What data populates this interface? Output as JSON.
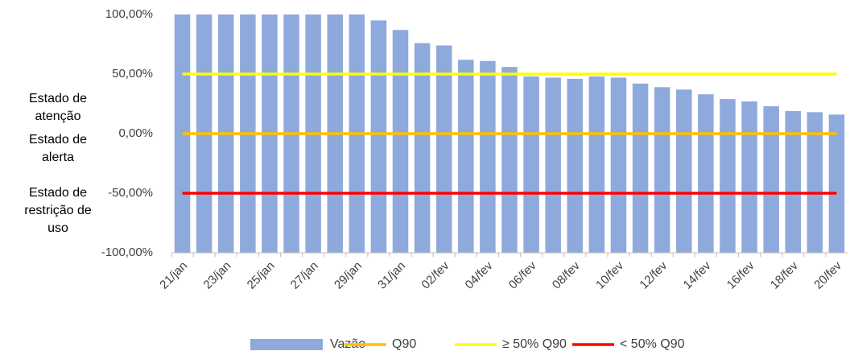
{
  "chart_data": {
    "type": "bar",
    "categories": [
      "21/jan",
      null,
      "23/jan",
      null,
      "25/jan",
      null,
      "27/jan",
      null,
      "29/jan",
      null,
      "31/jan",
      null,
      "02/fev",
      null,
      "04/fev",
      null,
      "06/fev",
      null,
      "08/fev",
      null,
      "10/fev",
      null,
      "12/fev",
      null,
      "14/fev",
      null,
      "16/fev",
      null,
      "18/fev",
      null,
      "20/fev"
    ],
    "series": [
      {
        "name": "Vazão",
        "type": "bar",
        "color": "#8eaadc",
        "values": [
          100,
          100,
          100,
          100,
          100,
          100,
          100,
          100,
          100,
          95,
          87,
          76,
          74,
          62,
          61,
          56,
          48,
          47,
          46,
          48,
          47,
          42,
          39,
          37,
          33,
          29,
          27,
          23,
          19,
          18,
          16
        ]
      },
      {
        "name": "Q90",
        "type": "line",
        "color": "#ffc000",
        "values": [
          0,
          0,
          0,
          0,
          0,
          0,
          0,
          0,
          0,
          0,
          0,
          0,
          0,
          0,
          0,
          0,
          0,
          0,
          0,
          0,
          0,
          0,
          0,
          0,
          0,
          0,
          0,
          0,
          0,
          0,
          0
        ]
      },
      {
        "name": "≥ 50% Q90",
        "type": "line",
        "color": "#ffff00",
        "values": [
          50,
          50,
          50,
          50,
          50,
          50,
          50,
          50,
          50,
          50,
          50,
          50,
          50,
          50,
          50,
          50,
          50,
          50,
          50,
          50,
          50,
          50,
          50,
          50,
          50,
          50,
          50,
          50,
          50,
          50,
          50
        ]
      },
      {
        "name": "< 50% Q90",
        "type": "line",
        "color": "#ff0000",
        "values": [
          -50,
          -50,
          -50,
          -50,
          -50,
          -50,
          -50,
          -50,
          -50,
          -50,
          -50,
          -50,
          -50,
          -50,
          -50,
          -50,
          -50,
          -50,
          -50,
          -50,
          -50,
          -50,
          -50,
          -50,
          -50,
          -50,
          -50,
          -50,
          -50,
          -50,
          -50
        ]
      }
    ],
    "ylim": [
      -100,
      100
    ],
    "yticks": [
      {
        "value": 100,
        "label": "100,00%"
      },
      {
        "value": 50,
        "label": "50,00%"
      },
      {
        "value": 0,
        "label": "0,00%"
      },
      {
        "value": -50,
        "label": "-50,00%"
      },
      {
        "value": -100,
        "label": "-100,00%"
      }
    ],
    "annotations": [
      [
        "Estado de",
        "atenção"
      ],
      [
        "Estado de",
        "alerta"
      ],
      [
        "Estado de",
        "restrição de",
        "uso"
      ]
    ],
    "legend": "bottom"
  }
}
